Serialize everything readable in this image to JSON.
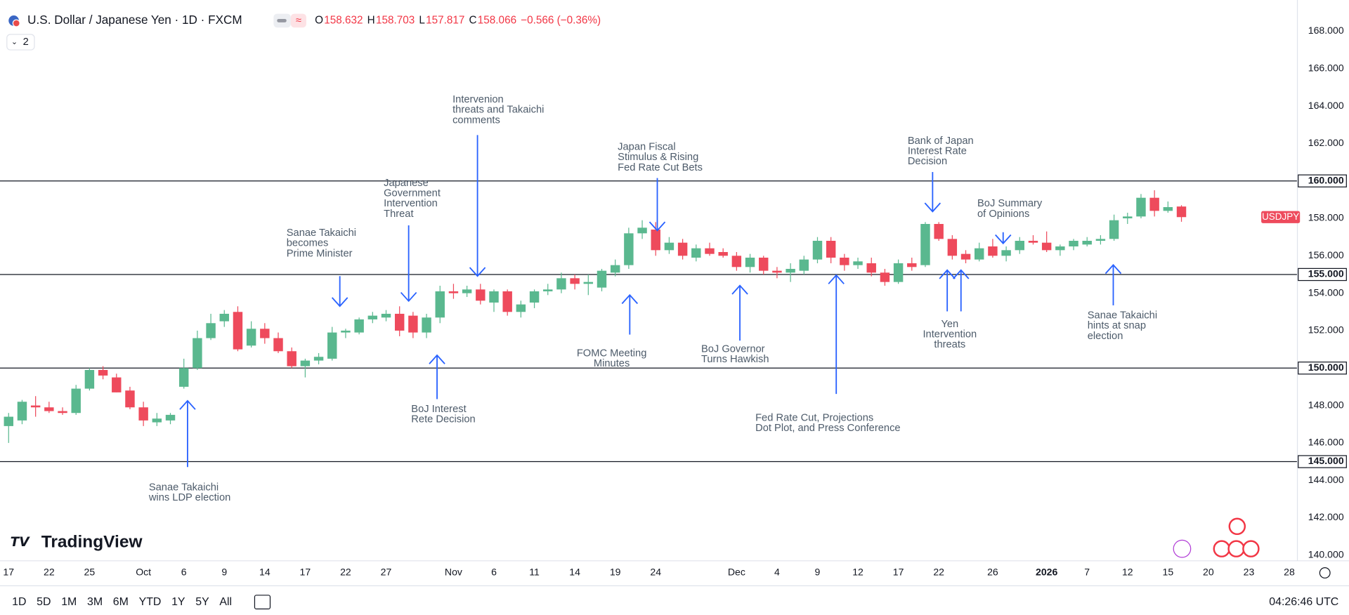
{
  "header": {
    "title": "U.S. Dollar / Japanese Yen · 1D · FXCM",
    "quote": [
      {
        "k": "O",
        "v": "158.632"
      },
      {
        "k": "H",
        "v": "158.703"
      },
      {
        "k": "L",
        "v": "157.817"
      },
      {
        "k": "C",
        "v": "158.066"
      }
    ],
    "change": "−0.566 (−0.36%)",
    "indicator_count": "2"
  },
  "chart_data": {
    "type": "candlestick",
    "symbol": "USDJPY",
    "up_color": "#5ab88f",
    "down_color": "#ee4a5c",
    "grid": true,
    "xlim": [
      -0.64,
      95.6
    ],
    "xticks": [
      {
        "value": 0,
        "label": "17"
      },
      {
        "value": 3,
        "label": "22"
      },
      {
        "value": 6,
        "label": "25"
      },
      {
        "value": 10,
        "label": "Oct"
      },
      {
        "value": 13,
        "label": "6"
      },
      {
        "value": 16,
        "label": "9"
      },
      {
        "value": 19,
        "label": "14"
      },
      {
        "value": 22,
        "label": "17"
      },
      {
        "value": 25,
        "label": "22"
      },
      {
        "value": 28,
        "label": "27"
      },
      {
        "value": 33,
        "label": "Nov"
      },
      {
        "value": 36,
        "label": "6"
      },
      {
        "value": 39,
        "label": "11"
      },
      {
        "value": 42,
        "label": "14"
      },
      {
        "value": 45,
        "label": "19"
      },
      {
        "value": 48,
        "label": "24"
      },
      {
        "value": 54,
        "label": "Dec"
      },
      {
        "value": 57,
        "label": "4"
      },
      {
        "value": 60,
        "label": "9"
      },
      {
        "value": 63,
        "label": "12"
      },
      {
        "value": 66,
        "label": "17"
      },
      {
        "value": 69,
        "label": "22"
      },
      {
        "value": 73,
        "label": "26"
      },
      {
        "value": 77,
        "label": "2026"
      },
      {
        "value": 80,
        "label": "7"
      },
      {
        "value": 83,
        "label": "12"
      },
      {
        "value": 86,
        "label": "15"
      },
      {
        "value": 89,
        "label": "20"
      },
      {
        "value": 92,
        "label": "23"
      },
      {
        "value": 95,
        "label": "28"
      }
    ],
    "ylim": [
      139.7,
      169.3
    ],
    "yticks": [
      {
        "value": 140,
        "label": "140.000"
      },
      {
        "value": 142,
        "label": "142.000"
      },
      {
        "value": 144,
        "label": "144.000"
      },
      {
        "value": 146,
        "label": "146.000"
      },
      {
        "value": 148,
        "label": "148.000"
      },
      {
        "value": 150,
        "label": "150.000"
      },
      {
        "value": 152,
        "label": "152.000"
      },
      {
        "value": 154,
        "label": "154.000"
      },
      {
        "value": 156,
        "label": "156.000"
      },
      {
        "value": 158,
        "label": "158.000"
      },
      {
        "value": 160,
        "label": "160.000"
      },
      {
        "value": 162,
        "label": "162.000"
      },
      {
        "value": 164,
        "label": "164.000"
      },
      {
        "value": 166,
        "label": "166.000"
      },
      {
        "value": 168,
        "label": "168.000"
      }
    ],
    "levels": [
      {
        "value": 160,
        "label": "160.000"
      },
      {
        "value": 155,
        "label": "155.000"
      },
      {
        "value": 150,
        "label": "150.000"
      },
      {
        "value": 145,
        "label": "145.000"
      }
    ],
    "candles": {
      "open": [
        146.9,
        147.2,
        148.0,
        147.9,
        147.7,
        147.6,
        148.9,
        149.9,
        149.5,
        148.8,
        147.9,
        147.1,
        147.2,
        149.0,
        150.0,
        151.6,
        152.5,
        153.0,
        151.2,
        152.1,
        151.6,
        150.9,
        150.1,
        150.4,
        150.5,
        151.9,
        151.9,
        152.6,
        152.7,
        152.9,
        152.8,
        151.9,
        152.7,
        154.1,
        154.0,
        154.2,
        153.5,
        154.1,
        153.0,
        153.5,
        154.1,
        154.2,
        154.8,
        154.5,
        154.3,
        155.1,
        155.5,
        157.2,
        157.4,
        156.3,
        156.7,
        155.9,
        156.4,
        156.2,
        156.0,
        155.4,
        155.9,
        155.2,
        155.1,
        155.2,
        155.8,
        156.8,
        155.9,
        155.5,
        155.6,
        155.1,
        154.6,
        155.6,
        155.5,
        157.7,
        156.9,
        156.1,
        155.8,
        156.5,
        156.0,
        156.3,
        156.8,
        156.7,
        156.3,
        156.5,
        156.6,
        156.8,
        156.9,
        158.0,
        158.1,
        159.1,
        158.4,
        158.632
      ],
      "high": [
        147.6,
        148.3,
        148.5,
        148.2,
        147.9,
        149.1,
        150.0,
        150.1,
        149.7,
        149.0,
        148.2,
        147.6,
        147.6,
        150.5,
        152.0,
        152.9,
        153.1,
        153.3,
        152.5,
        152.4,
        151.9,
        151.1,
        150.5,
        150.8,
        152.2,
        152.1,
        152.7,
        153.0,
        153.1,
        153.3,
        153.0,
        152.9,
        154.4,
        154.5,
        154.4,
        154.5,
        154.2,
        154.2,
        153.6,
        154.2,
        154.5,
        155.1,
        155.0,
        155.0,
        155.3,
        155.8,
        157.5,
        157.9,
        157.8,
        157.0,
        156.9,
        156.6,
        156.7,
        156.4,
        156.2,
        156.1,
        156.0,
        155.4,
        155.6,
        156.0,
        157.0,
        157.0,
        156.1,
        155.9,
        155.9,
        155.3,
        155.8,
        155.9,
        157.8,
        157.8,
        157.1,
        156.3,
        156.7,
        156.9,
        156.5,
        157.0,
        157.1,
        157.3,
        156.6,
        156.9,
        157.0,
        157.1,
        158.2,
        158.3,
        159.3,
        159.5,
        158.9,
        158.703
      ],
      "low": [
        146.0,
        147.0,
        147.4,
        147.6,
        147.5,
        147.5,
        148.8,
        149.4,
        148.7,
        147.8,
        146.9,
        146.9,
        147.0,
        148.9,
        149.9,
        151.5,
        152.2,
        150.9,
        151.1,
        151.3,
        150.8,
        150.0,
        149.5,
        150.2,
        150.4,
        151.6,
        151.8,
        152.4,
        152.5,
        151.7,
        151.6,
        151.6,
        152.4,
        153.7,
        153.8,
        153.4,
        153.0,
        152.8,
        152.7,
        153.2,
        153.9,
        154.0,
        154.2,
        153.9,
        154.1,
        154.9,
        155.3,
        156.9,
        156.0,
        156.1,
        155.8,
        155.7,
        156.0,
        155.9,
        155.2,
        155.1,
        155.0,
        154.8,
        154.6,
        155.0,
        155.6,
        155.6,
        155.2,
        155.3,
        154.9,
        154.4,
        154.5,
        155.2,
        155.4,
        156.8,
        155.8,
        155.6,
        155.7,
        155.9,
        155.7,
        156.1,
        156.6,
        156.2,
        156.0,
        156.3,
        156.5,
        156.6,
        156.8,
        157.7,
        158.0,
        158.1,
        158.3,
        157.817
      ],
      "close": [
        147.4,
        148.2,
        147.9,
        147.7,
        147.6,
        148.9,
        149.9,
        149.6,
        148.7,
        147.9,
        147.2,
        147.3,
        147.5,
        150.0,
        151.6,
        152.4,
        152.9,
        151.0,
        152.1,
        151.6,
        150.9,
        150.1,
        150.4,
        150.6,
        151.9,
        152.0,
        152.6,
        152.8,
        152.9,
        152.0,
        151.9,
        152.7,
        154.1,
        154.0,
        154.2,
        153.6,
        154.1,
        153.0,
        153.4,
        154.1,
        154.2,
        154.8,
        154.5,
        154.6,
        155.2,
        155.5,
        157.2,
        157.5,
        156.3,
        156.7,
        156.0,
        156.4,
        156.1,
        156.0,
        155.4,
        155.9,
        155.2,
        155.1,
        155.3,
        155.8,
        156.8,
        155.9,
        155.5,
        155.7,
        155.1,
        154.6,
        155.6,
        155.4,
        157.7,
        156.9,
        156.0,
        155.8,
        156.4,
        156.0,
        156.3,
        156.8,
        156.7,
        156.3,
        156.5,
        156.8,
        156.8,
        156.9,
        157.9,
        158.1,
        159.1,
        158.4,
        158.6,
        158.066
      ]
    },
    "annotations": [
      {
        "lines": [
          "Sanae Takaichi",
          "wins LDP election"
        ]
      },
      {
        "lines": [
          "Sanae Takaichi",
          "becomes",
          "Prime Minister"
        ]
      },
      {
        "lines": [
          "Japanese",
          "Government",
          "Intervention",
          "Threat"
        ]
      },
      {
        "lines": [
          "BoJ Interest",
          "Rete Decision"
        ]
      },
      {
        "lines": [
          "Intervenion",
          "threats and Takaichi",
          "comments"
        ]
      },
      {
        "lines": [
          "Japan Fiscal",
          "Stimulus & Rising",
          "Fed Rate Cut Bets"
        ]
      },
      {
        "lines": [
          "FOMC Meeting",
          "Minutes"
        ]
      },
      {
        "lines": [
          "BoJ Governor",
          "Turns Hawkish"
        ]
      },
      {
        "lines": [
          "Fed Rate Cut, Projections",
          "Dot Plot, and Press Conference"
        ]
      },
      {
        "lines": [
          "Bank of Japan",
          "Interest Rate",
          "Decision"
        ]
      },
      {
        "lines": [
          "Yen",
          "Intervention",
          "threats"
        ]
      },
      {
        "lines": [
          "BoJ Summary",
          "of Opinions"
        ]
      },
      {
        "lines": [
          "Sanae Takaichi",
          "hints at snap",
          "election"
        ]
      }
    ]
  },
  "branding": {
    "logo": "TradingView"
  },
  "toolbar": {
    "ranges": [
      "1D",
      "5D",
      "1M",
      "3M",
      "6M",
      "YTD",
      "1Y",
      "5Y",
      "All"
    ],
    "clock": "04:26:46 UTC"
  }
}
